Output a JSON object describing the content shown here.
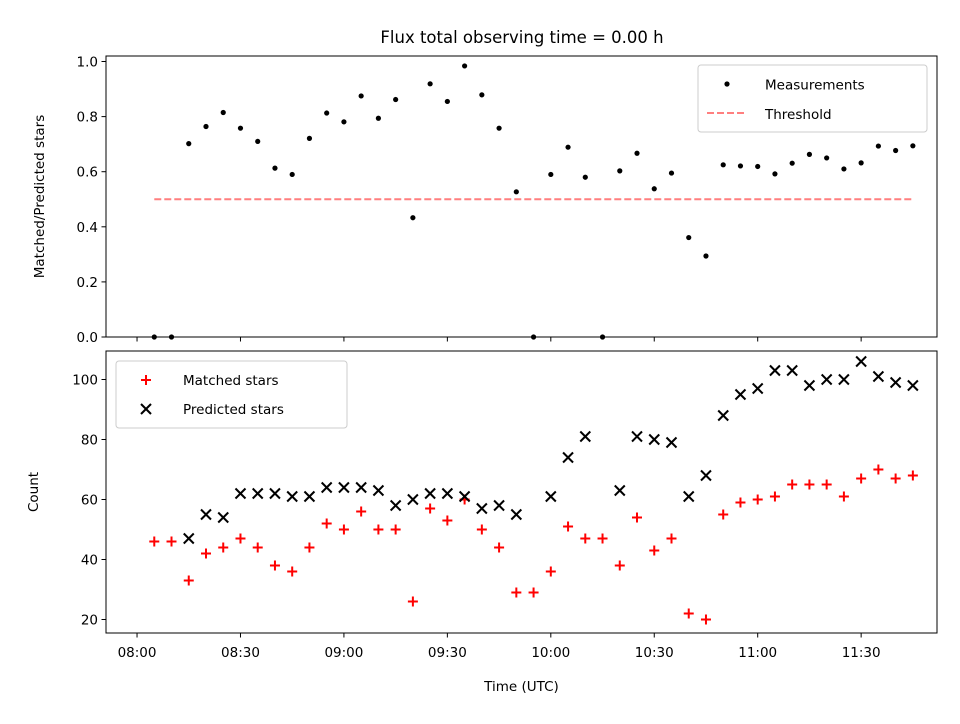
{
  "title": "Flux total observing time = 0.00 h",
  "colors": {
    "measurements": "#000000",
    "threshold": "#ff7f7f",
    "matched": "#ff0000",
    "predicted": "#000000",
    "frame": "#000000"
  },
  "x_axis": {
    "label": "Time (UTC)",
    "unit": "minutes after 08:00",
    "ticks": [
      {
        "value": 0,
        "label": "08:00"
      },
      {
        "value": 30,
        "label": "08:30"
      },
      {
        "value": 60,
        "label": "09:00"
      },
      {
        "value": 90,
        "label": "09:30"
      },
      {
        "value": 120,
        "label": "10:00"
      },
      {
        "value": 150,
        "label": "10:30"
      },
      {
        "value": 180,
        "label": "11:00"
      },
      {
        "value": 210,
        "label": "11:30"
      }
    ]
  },
  "chart_data": [
    {
      "type": "scatter",
      "title": "Flux total observing time = 0.00 h",
      "ylabel": "Matched/Predicted stars",
      "xlim": [
        -9,
        232
      ],
      "ylim": [
        0,
        1.02
      ],
      "yticks": [
        {
          "value": 0.0,
          "label": "0.0"
        },
        {
          "value": 0.2,
          "label": "0.2"
        },
        {
          "value": 0.4,
          "label": "0.4"
        },
        {
          "value": 0.6,
          "label": "0.6"
        },
        {
          "value": 0.8,
          "label": "0.8"
        },
        {
          "value": 1.0,
          "label": "1.0"
        }
      ],
      "legend": {
        "position": "top-right",
        "entries": [
          "Measurements",
          "Threshold"
        ]
      },
      "series": [
        {
          "name": "Measurements",
          "marker": "dot",
          "x": [
            5,
            10,
            15,
            20,
            25,
            30,
            35,
            40,
            45,
            50,
            55,
            60,
            65,
            70,
            75,
            80,
            85,
            90,
            95,
            100,
            105,
            110,
            115,
            120,
            125,
            130,
            135,
            140,
            145,
            150,
            155,
            160,
            165,
            170,
            175,
            180,
            185,
            190,
            195,
            200,
            205,
            210,
            215,
            220,
            225
          ],
          "y": [
            0.0,
            0.0,
            0.702,
            0.764,
            0.815,
            0.758,
            0.71,
            0.613,
            0.59,
            0.721,
            0.813,
            0.781,
            0.875,
            0.794,
            0.862,
            0.433,
            0.919,
            0.855,
            0.984,
            0.879,
            0.758,
            0.527,
            0.0,
            0.59,
            0.689,
            0.58,
            0.0,
            0.603,
            0.667,
            0.538,
            0.595,
            0.361,
            0.294,
            0.625,
            0.621,
            0.619,
            0.592,
            0.631,
            0.663,
            0.65,
            0.61,
            0.632,
            0.693,
            0.677,
            0.694
          ]
        },
        {
          "name": "Threshold",
          "marker": "dashed-line",
          "x": [
            5,
            225
          ],
          "y": [
            0.5,
            0.5
          ]
        }
      ]
    },
    {
      "type": "scatter",
      "xlabel": "Time (UTC)",
      "ylabel": "Count",
      "xlim": [
        -9,
        232
      ],
      "ylim": [
        15.5,
        109.5
      ],
      "yticks": [
        {
          "value": 20,
          "label": "20"
        },
        {
          "value": 40,
          "label": "40"
        },
        {
          "value": 60,
          "label": "60"
        },
        {
          "value": 80,
          "label": "80"
        },
        {
          "value": 100,
          "label": "100"
        }
      ],
      "legend": {
        "position": "top-left",
        "entries": [
          "Matched stars",
          "Predicted stars"
        ]
      },
      "series": [
        {
          "name": "Matched stars",
          "marker": "plus",
          "x": [
            5,
            10,
            15,
            20,
            25,
            30,
            35,
            40,
            45,
            50,
            55,
            60,
            65,
            70,
            75,
            80,
            85,
            90,
            95,
            100,
            105,
            110,
            115,
            120,
            125,
            130,
            135,
            140,
            145,
            150,
            155,
            160,
            165,
            170,
            175,
            180,
            185,
            190,
            195,
            200,
            205,
            210,
            215,
            220,
            225
          ],
          "y": [
            46,
            46,
            33,
            42,
            44,
            47,
            44,
            38,
            36,
            44,
            52,
            50,
            56,
            50,
            50,
            26,
            57,
            53,
            60,
            50,
            44,
            29,
            29,
            36,
            51,
            47,
            47,
            38,
            54,
            43,
            47,
            22,
            20,
            55,
            59,
            60,
            61,
            65,
            65,
            65,
            61,
            67,
            70,
            67,
            68
          ]
        },
        {
          "name": "Predicted stars",
          "marker": "x",
          "x": [
            15,
            20,
            25,
            30,
            35,
            40,
            45,
            50,
            55,
            60,
            65,
            70,
            75,
            80,
            85,
            90,
            95,
            100,
            105,
            110,
            120,
            125,
            130,
            140,
            145,
            150,
            155,
            160,
            165,
            170,
            175,
            180,
            185,
            190,
            195,
            200,
            205,
            210,
            215,
            220,
            225
          ],
          "y": [
            47,
            55,
            54,
            62,
            62,
            62,
            61,
            61,
            64,
            64,
            64,
            63,
            58,
            60,
            62,
            62,
            61,
            57,
            58,
            55,
            61,
            74,
            81,
            63,
            81,
            80,
            79,
            61,
            68,
            88,
            95,
            97,
            103,
            103,
            98,
            100,
            100,
            106,
            101,
            99,
            98
          ]
        }
      ]
    }
  ]
}
